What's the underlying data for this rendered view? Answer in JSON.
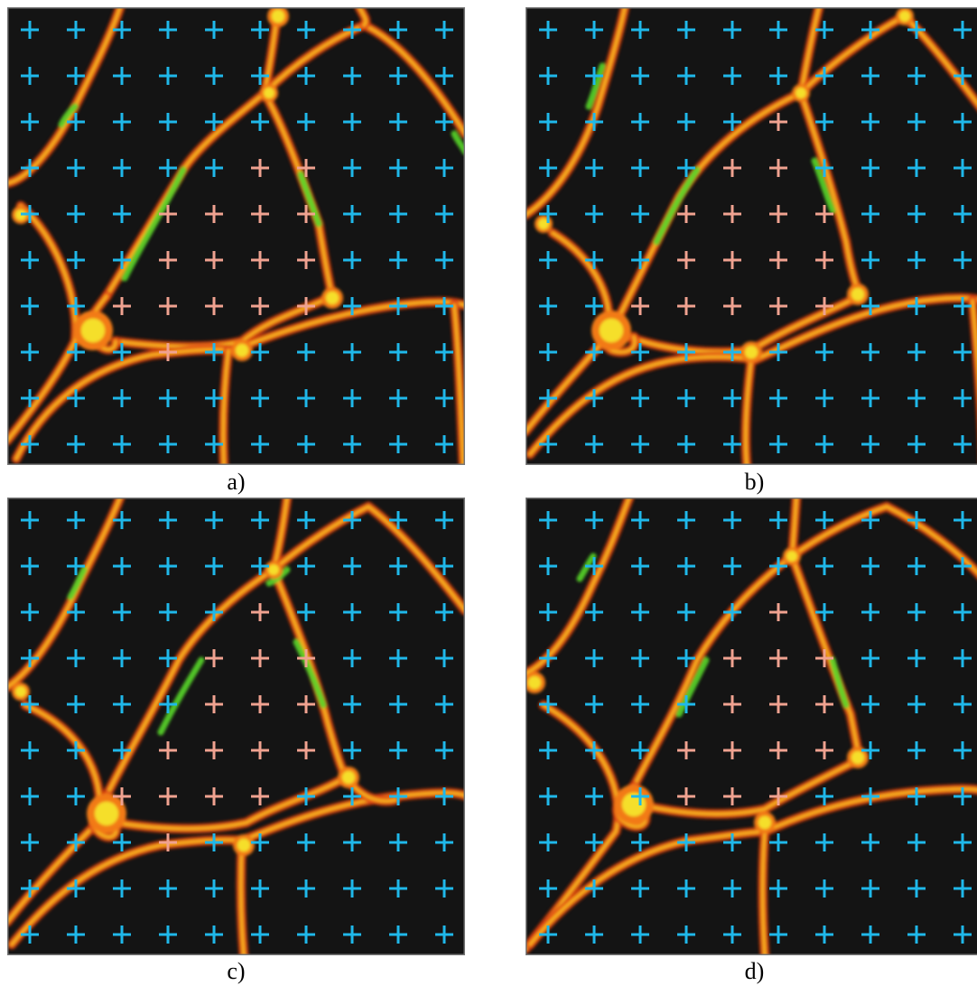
{
  "figure": {
    "colors": {
      "background": "#141414",
      "border": "#777777",
      "membrane_outer": "#d63a12",
      "membrane_mid": "#f27a18",
      "membrane_hot": "#f5df2a",
      "green_signal": "#58d62a",
      "grid_outside": "#1fb8ea",
      "grid_inside": "#f0a290"
    },
    "grid": {
      "rows": 10,
      "cols": 10
    },
    "panels": [
      {
        "id": "a",
        "caption": "a)",
        "inside_points": [
          [
            3,
            5
          ],
          [
            3,
            6
          ],
          [
            4,
            3
          ],
          [
            4,
            4
          ],
          [
            4,
            5
          ],
          [
            4,
            6
          ],
          [
            5,
            3
          ],
          [
            5,
            4
          ],
          [
            5,
            5
          ],
          [
            5,
            6
          ],
          [
            6,
            2
          ],
          [
            6,
            3
          ],
          [
            6,
            4
          ],
          [
            6,
            5
          ],
          [
            6,
            6
          ],
          [
            7,
            3
          ]
        ]
      },
      {
        "id": "b",
        "caption": "b)",
        "inside_points": [
          [
            2,
            5
          ],
          [
            3,
            4
          ],
          [
            3,
            5
          ],
          [
            4,
            3
          ],
          [
            4,
            4
          ],
          [
            4,
            5
          ],
          [
            4,
            6
          ],
          [
            5,
            3
          ],
          [
            5,
            4
          ],
          [
            5,
            5
          ],
          [
            5,
            6
          ],
          [
            6,
            2
          ],
          [
            6,
            3
          ],
          [
            6,
            4
          ],
          [
            6,
            5
          ],
          [
            6,
            6
          ]
        ]
      },
      {
        "id": "c",
        "caption": "c)",
        "inside_points": [
          [
            2,
            5
          ],
          [
            3,
            4
          ],
          [
            3,
            5
          ],
          [
            3,
            6
          ],
          [
            4,
            4
          ],
          [
            4,
            5
          ],
          [
            4,
            6
          ],
          [
            5,
            3
          ],
          [
            5,
            4
          ],
          [
            5,
            5
          ],
          [
            5,
            6
          ],
          [
            6,
            2
          ],
          [
            6,
            3
          ],
          [
            6,
            4
          ],
          [
            6,
            5
          ],
          [
            7,
            3
          ]
        ]
      },
      {
        "id": "d",
        "caption": "d)",
        "inside_points": [
          [
            2,
            5
          ],
          [
            3,
            4
          ],
          [
            3,
            5
          ],
          [
            3,
            6
          ],
          [
            4,
            4
          ],
          [
            4,
            5
          ],
          [
            4,
            6
          ],
          [
            5,
            3
          ],
          [
            5,
            4
          ],
          [
            5,
            5
          ],
          [
            5,
            6
          ],
          [
            6,
            3
          ],
          [
            6,
            4
          ],
          [
            6,
            5
          ]
        ]
      }
    ]
  }
}
